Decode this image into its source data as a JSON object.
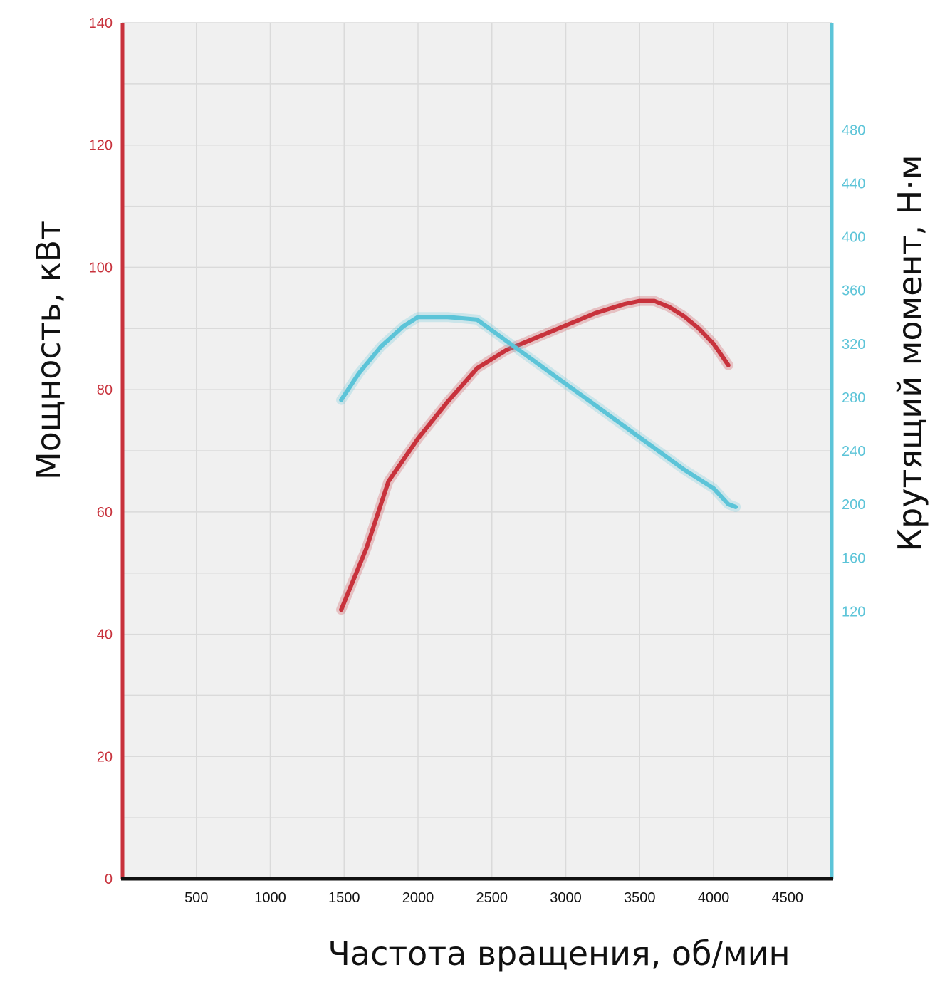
{
  "chart_data": {
    "type": "line",
    "title": "",
    "xlabel": "Частота вращения, об/мин",
    "ylabel_left": "Мощность, кВт",
    "ylabel_right": "Крутящий момент, Н·м",
    "xlim": [
      0,
      4800
    ],
    "ylim_left": [
      0,
      140
    ],
    "ylim_right": [
      -80,
      560
    ],
    "x_ticks": [
      500,
      1000,
      1500,
      2000,
      2500,
      3000,
      3500,
      4000,
      4500
    ],
    "x_tick_labels": [
      "500",
      "1000",
      "1500",
      "2000",
      "2500",
      "3000",
      "3500",
      "4000",
      "4500"
    ],
    "y_left_ticks": [
      0,
      20,
      40,
      60,
      80,
      100,
      120,
      140
    ],
    "y_left_tick_labels": [
      "0",
      "20",
      "40",
      "60",
      "80",
      "100",
      "120",
      "140"
    ],
    "y_right_ticks": [
      120,
      160,
      200,
      240,
      280,
      320,
      360,
      400,
      440,
      480
    ],
    "y_right_tick_labels": [
      "120",
      "160",
      "200",
      "240",
      "280",
      "320",
      "360",
      "400",
      "440",
      "480"
    ],
    "grid": true,
    "colors": {
      "power": "#c8323c",
      "torque": "#5cc4d8",
      "plot_bg": "#f0f0f0",
      "grid": "#dadada",
      "x_axis": "#111111"
    },
    "series": [
      {
        "axis": "left",
        "color": "#c8323c",
        "x": [
          1480,
          1650,
          1800,
          2000,
          2200,
          2400,
          2600,
          2800,
          3000,
          3200,
          3400,
          3500,
          3600,
          3700,
          3800,
          3900,
          4000,
          4100
        ],
        "values": [
          44,
          54,
          65,
          72,
          78,
          83.5,
          86.5,
          88.5,
          90.5,
          92.5,
          94,
          94.5,
          94.5,
          93.5,
          92,
          90,
          87.5,
          84
        ]
      },
      {
        "axis": "right",
        "color": "#5cc4d8",
        "x": [
          1480,
          1600,
          1750,
          1900,
          2000,
          2200,
          2400,
          2600,
          2800,
          3000,
          3200,
          3400,
          3600,
          3800,
          4000,
          4100,
          4150
        ],
        "values": [
          278,
          298,
          318,
          333,
          340,
          340,
          338,
          322,
          306,
          290,
          274,
          258,
          242,
          226,
          212,
          200,
          198
        ]
      }
    ]
  }
}
